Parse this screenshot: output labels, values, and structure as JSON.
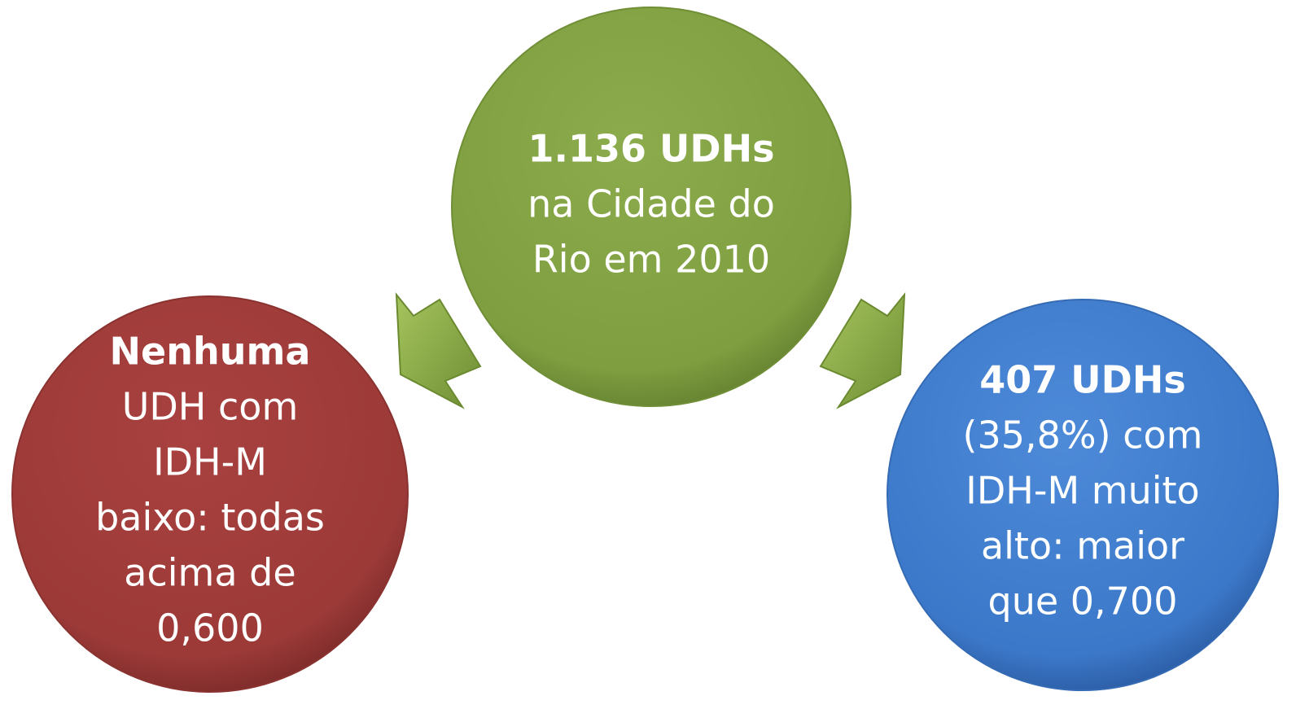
{
  "nodes": [
    {
      "bold": "1.136 UDHs",
      "lines": [
        "na Cidade do",
        "Rio em 2010"
      ]
    },
    {
      "bold": "Nenhuma",
      "lines": [
        "UDH com",
        "IDH-M",
        "baixo: todas",
        "acima de",
        "0,600"
      ]
    },
    {
      "bold": "407 UDHs",
      "lines": [
        "(35,8%) com",
        "IDH-M muito",
        "alto: maior",
        "que 0,700"
      ]
    }
  ]
}
